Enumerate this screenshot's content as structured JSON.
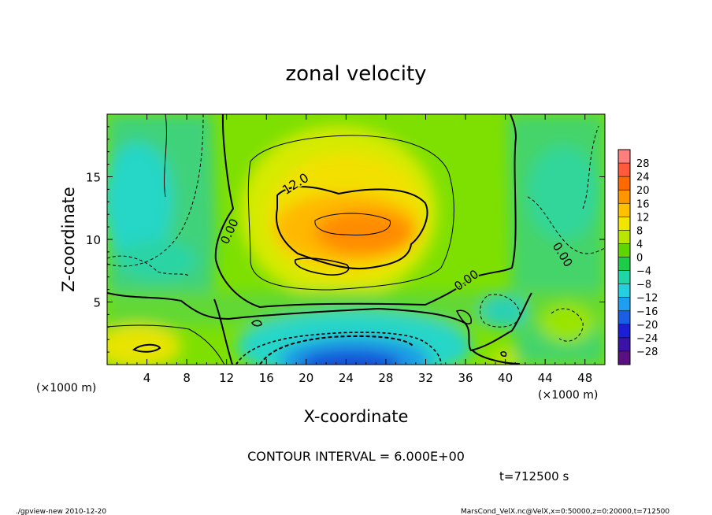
{
  "chart_data": {
    "type": "heatmap",
    "title": "zonal velocity",
    "xlabel": "X-coordinate",
    "ylabel": "Z-coordinate",
    "x_unit": "(×1000 m)",
    "y_unit": "(×1000 m)",
    "xlim": [
      0,
      50
    ],
    "ylim": [
      0,
      20
    ],
    "xticks": [
      4,
      8,
      12,
      16,
      20,
      24,
      28,
      32,
      36,
      40,
      44,
      48
    ],
    "yticks": [
      5,
      10,
      15
    ],
    "contour_interval_text": "CONTOUR INTERVAL = 6.000E+00",
    "time_text": "t=712500 s",
    "contour_labels": [
      "12.0",
      "0.00",
      "0.00",
      "0.00"
    ],
    "colorbar": {
      "levels": [
        28,
        24,
        20,
        16,
        12,
        8,
        4,
        0,
        -4,
        -8,
        -12,
        -16,
        -20,
        -24,
        -28
      ],
      "labels": [
        "28",
        "24",
        "20",
        "16",
        "12",
        "8",
        "4",
        "0",
        "−4",
        "−8",
        "−12",
        "−16",
        "−20",
        "−24",
        "−28"
      ],
      "colors": [
        "#ff7f7f",
        "#ff5a3c",
        "#ff6a00",
        "#ff9500",
        "#ffc000",
        "#f0e600",
        "#b8e600",
        "#5fd400",
        "#1fcc4a",
        "#21d6a6",
        "#26cfe0",
        "#1e9ef0",
        "#1a5ee6",
        "#1a1fd6",
        "#3a12a8",
        "#5a1080"
      ]
    },
    "field_features": [
      {
        "kind": "max",
        "x": 25,
        "z": 10.5,
        "value": 20
      },
      {
        "kind": "min",
        "x": 22,
        "z": 1,
        "value": -18
      },
      {
        "kind": "min",
        "x": 3,
        "z": 13,
        "value": -7
      }
    ]
  },
  "footer": {
    "left": "./gpview-new   2010-12-20",
    "right": "MarsCond_VelX.nc@VelX,x=0:50000,z=0:20000,t=712500"
  }
}
